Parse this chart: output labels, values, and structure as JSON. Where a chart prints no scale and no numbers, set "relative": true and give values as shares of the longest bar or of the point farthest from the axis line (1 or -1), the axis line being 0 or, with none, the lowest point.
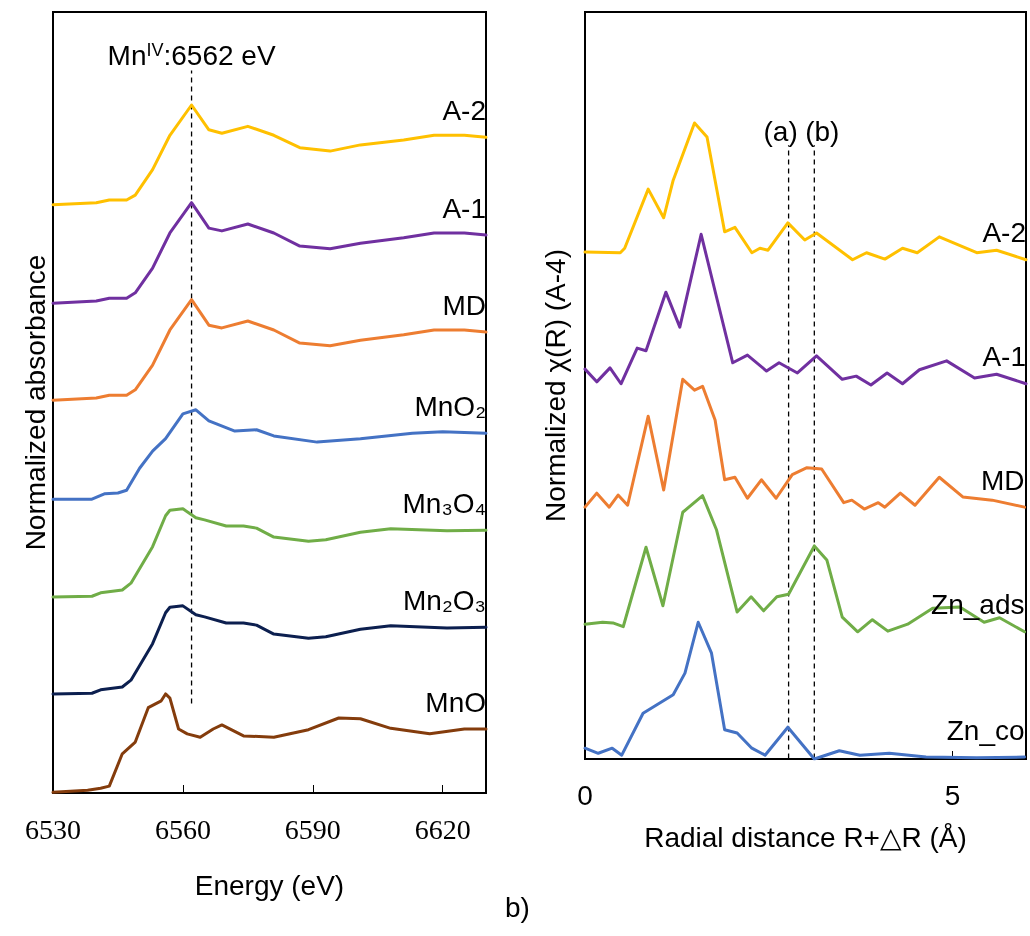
{
  "chart_data": [
    {
      "type": "line",
      "relative": true,
      "xlabel": "Energy (eV)",
      "ylabel": "Normalized absorbance",
      "xlim": [
        6530,
        6630
      ],
      "xticks": [
        6530,
        6560,
        6590,
        6620
      ],
      "legend": false,
      "grid": false,
      "marker": "none",
      "line_style": "solid",
      "ref_lines": [
        {
          "axis": "x",
          "value": 6562,
          "label": "Mn$^{IV}$:6562 eV",
          "color": "#000000",
          "line_style": "dashed"
        }
      ],
      "series": [
        {
          "name": "A-2",
          "color": "#ffc000",
          "x": [
            6530,
            6540,
            6543,
            6547,
            6549,
            6553,
            6557,
            6562,
            6566,
            6569,
            6575,
            6581,
            6587,
            6594,
            6601,
            6611,
            6618,
            6625,
            6630
          ],
          "values": [
            0.855,
            0.858,
            0.862,
            0.862,
            0.869,
            0.906,
            0.956,
            1.0,
            0.964,
            0.959,
            0.969,
            0.956,
            0.938,
            0.933,
            0.942,
            0.949,
            0.956,
            0.956,
            0.953
          ]
        },
        {
          "name": "A-1",
          "color": "#7030a0",
          "x": [
            6530,
            6540,
            6543,
            6547,
            6549,
            6553,
            6557,
            6562,
            6566,
            6569,
            6575,
            6581,
            6587,
            6594,
            6601,
            6611,
            6618,
            6625,
            6630
          ],
          "values": [
            0.712,
            0.715,
            0.719,
            0.719,
            0.727,
            0.763,
            0.814,
            0.858,
            0.821,
            0.817,
            0.827,
            0.814,
            0.795,
            0.791,
            0.799,
            0.807,
            0.814,
            0.814,
            0.811
          ]
        },
        {
          "name": "MD",
          "color": "#ed7d31",
          "x": [
            6530,
            6540,
            6543,
            6547,
            6549,
            6553,
            6557,
            6562,
            6566,
            6569,
            6575,
            6581,
            6587,
            6594,
            6601,
            6611,
            6618,
            6625,
            6630
          ],
          "values": [
            0.571,
            0.574,
            0.578,
            0.578,
            0.586,
            0.622,
            0.673,
            0.717,
            0.68,
            0.676,
            0.686,
            0.673,
            0.654,
            0.65,
            0.658,
            0.666,
            0.673,
            0.673,
            0.67
          ]
        },
        {
          "name": "MnO₂",
          "color": "#4472c4",
          "x": [
            6530,
            6539,
            6542,
            6545,
            6547,
            6550,
            6553,
            6556,
            6560,
            6563,
            6566,
            6572,
            6577,
            6581,
            6591,
            6601,
            6613,
            6620,
            6630
          ],
          "values": [
            0.427,
            0.427,
            0.435,
            0.436,
            0.44,
            0.472,
            0.497,
            0.515,
            0.551,
            0.557,
            0.541,
            0.526,
            0.528,
            0.519,
            0.51,
            0.515,
            0.523,
            0.525,
            0.523
          ]
        },
        {
          "name": "Mn₃O₄",
          "color": "#70ad47",
          "x": [
            6530,
            6539,
            6541,
            6546,
            6548,
            6553,
            6556,
            6557,
            6560,
            6563,
            6565,
            6570,
            6574,
            6577,
            6581,
            6589,
            6593,
            6601,
            6608,
            6621,
            6630
          ],
          "values": [
            0.285,
            0.286,
            0.291,
            0.295,
            0.305,
            0.358,
            0.403,
            0.411,
            0.413,
            0.4,
            0.397,
            0.388,
            0.388,
            0.385,
            0.372,
            0.366,
            0.368,
            0.379,
            0.384,
            0.381,
            0.382
          ]
        },
        {
          "name": "Mn₂O₃",
          "color": "#0c1f4f",
          "x": [
            6530,
            6539,
            6541,
            6546,
            6548,
            6553,
            6556,
            6557,
            6560,
            6563,
            6565,
            6570,
            6574,
            6577,
            6581,
            6589,
            6593,
            6601,
            6608,
            6621,
            6630
          ],
          "values": [
            0.144,
            0.145,
            0.15,
            0.154,
            0.164,
            0.217,
            0.262,
            0.27,
            0.272,
            0.259,
            0.256,
            0.247,
            0.247,
            0.244,
            0.231,
            0.225,
            0.227,
            0.238,
            0.243,
            0.24,
            0.241
          ]
        },
        {
          "name": "MnO",
          "color": "#843c0c",
          "x": [
            6530,
            6538,
            6541,
            6543,
            6546,
            6549,
            6552,
            6555,
            6556,
            6557,
            6559,
            6561,
            6564,
            6567,
            6569,
            6574,
            6581,
            6589,
            6596,
            6601,
            6608,
            6617,
            6625,
            6630
          ],
          "values": [
            0.001,
            0.004,
            0.007,
            0.01,
            0.057,
            0.074,
            0.124,
            0.134,
            0.144,
            0.138,
            0.093,
            0.086,
            0.081,
            0.093,
            0.099,
            0.083,
            0.081,
            0.092,
            0.109,
            0.108,
            0.094,
            0.086,
            0.093,
            0.093
          ]
        }
      ]
    },
    {
      "type": "line",
      "relative": true,
      "xlabel": "Radial distance R+△R (Å)",
      "ylabel": "Normalized χ(R) (A-4)",
      "xlim": [
        0,
        6
      ],
      "xticks": [
        0,
        5
      ],
      "legend": false,
      "grid": false,
      "marker": "none",
      "line_style": "solid",
      "annotations": [
        "b)"
      ],
      "ref_lines": [
        {
          "axis": "x",
          "value": 2.77,
          "label": "(a)",
          "color": "#000000",
          "line_style": "dashed"
        },
        {
          "axis": "x",
          "value": 3.12,
          "label": "(b)",
          "color": "#000000",
          "line_style": "dashed"
        }
      ],
      "series": [
        {
          "name": "A-2",
          "color": "#ffc000",
          "x": [
            0,
            0.48,
            0.54,
            0.86,
            1.07,
            1.2,
            1.49,
            1.66,
            1.9,
            2.04,
            2.27,
            2.38,
            2.49,
            2.76,
            2.99,
            3.15,
            3.64,
            3.83,
            4.08,
            4.32,
            4.52,
            4.82,
            5.33,
            5.6,
            6.0
          ],
          "values": [
            0.797,
            0.796,
            0.803,
            0.896,
            0.851,
            0.91,
            1.0,
            0.978,
            0.829,
            0.836,
            0.796,
            0.803,
            0.8,
            0.843,
            0.816,
            0.827,
            0.785,
            0.796,
            0.786,
            0.803,
            0.796,
            0.821,
            0.796,
            0.8,
            0.785
          ]
        },
        {
          "name": "A-1",
          "color": "#7030a0",
          "x": [
            0,
            0.16,
            0.34,
            0.49,
            0.71,
            0.83,
            1.1,
            1.29,
            1.58,
            1.79,
            2.01,
            2.21,
            2.47,
            2.64,
            2.89,
            3.15,
            3.5,
            3.69,
            3.89,
            4.11,
            4.32,
            4.55,
            4.92,
            5.3,
            5.6,
            6.0
          ],
          "values": [
            0.613,
            0.593,
            0.615,
            0.59,
            0.646,
            0.642,
            0.734,
            0.679,
            0.825,
            0.726,
            0.623,
            0.635,
            0.61,
            0.623,
            0.607,
            0.634,
            0.597,
            0.602,
            0.588,
            0.607,
            0.59,
            0.612,
            0.626,
            0.599,
            0.605,
            0.59
          ]
        },
        {
          "name": "MD",
          "color": "#ed7d31",
          "x": [
            0,
            0.16,
            0.33,
            0.45,
            0.58,
            0.86,
            1.07,
            1.33,
            1.49,
            1.6,
            1.77,
            1.9,
            2.04,
            2.21,
            2.4,
            2.6,
            2.82,
            3.02,
            3.22,
            3.52,
            3.63,
            3.8,
            3.99,
            4.08,
            4.29,
            4.49,
            4.82,
            5.14,
            5.54,
            5.98
          ],
          "values": [
            0.396,
            0.418,
            0.396,
            0.415,
            0.399,
            0.539,
            0.423,
            0.597,
            0.58,
            0.586,
            0.533,
            0.439,
            0.443,
            0.41,
            0.439,
            0.41,
            0.447,
            0.458,
            0.456,
            0.403,
            0.407,
            0.393,
            0.403,
            0.396,
            0.418,
            0.399,
            0.443,
            0.412,
            0.407,
            0.396
          ]
        },
        {
          "name": "Zn_ads",
          "color": "#70ad47",
          "x": [
            0,
            0.24,
            0.38,
            0.52,
            0.83,
            1.06,
            1.33,
            1.6,
            1.79,
            2.07,
            2.26,
            2.43,
            2.61,
            2.77,
            3.12,
            3.29,
            3.5,
            3.71,
            3.91,
            4.12,
            4.39,
            4.73,
            5.1,
            5.43,
            5.64,
            5.98
          ],
          "values": [
            0.212,
            0.215,
            0.214,
            0.208,
            0.333,
            0.241,
            0.388,
            0.414,
            0.36,
            0.231,
            0.255,
            0.233,
            0.255,
            0.259,
            0.335,
            0.313,
            0.223,
            0.2,
            0.219,
            0.201,
            0.212,
            0.237,
            0.239,
            0.215,
            0.222,
            0.2
          ]
        },
        {
          "name": "Zn_co",
          "color": "#4472c4",
          "x": [
            0,
            0.18,
            0.37,
            0.5,
            0.79,
            1.2,
            1.36,
            1.54,
            1.72,
            1.9,
            2.07,
            2.27,
            2.45,
            2.76,
            3.12,
            3.46,
            3.74,
            4.14,
            4.64,
            5.33,
            5.98
          ],
          "values": [
            0.017,
            0.009,
            0.017,
            0.006,
            0.072,
            0.101,
            0.135,
            0.215,
            0.167,
            0.046,
            0.041,
            0.017,
            0.006,
            0.05,
            0,
            0.013,
            0.006,
            0.009,
            0.003,
            0.002,
            0.003
          ]
        }
      ]
    }
  ]
}
